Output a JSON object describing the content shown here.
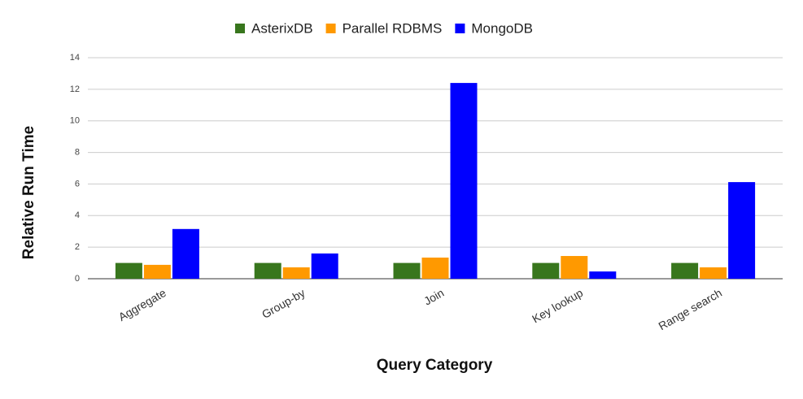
{
  "chart_data": {
    "type": "bar",
    "xlabel": "Query Category",
    "ylabel": "Relative Run Time",
    "categories": [
      "Aggregate",
      "Group-by",
      "Join",
      "Key lookup",
      "Range search"
    ],
    "series": [
      {
        "name": "AsterixDB",
        "color": "#38761d",
        "values": [
          1,
          1,
          1,
          1,
          1
        ]
      },
      {
        "name": "Parallel RDBMS",
        "color": "#ff9900",
        "values": [
          0.88,
          0.72,
          1.34,
          1.44,
          0.72
        ]
      },
      {
        "name": "MongoDB",
        "color": "#0000ff",
        "values": [
          3.15,
          1.6,
          12.4,
          0.46,
          6.12
        ]
      }
    ],
    "ylim": [
      0,
      14
    ],
    "yticks": [
      0,
      2,
      4,
      6,
      8,
      10,
      12,
      14
    ],
    "grid": true,
    "legend": "top"
  }
}
